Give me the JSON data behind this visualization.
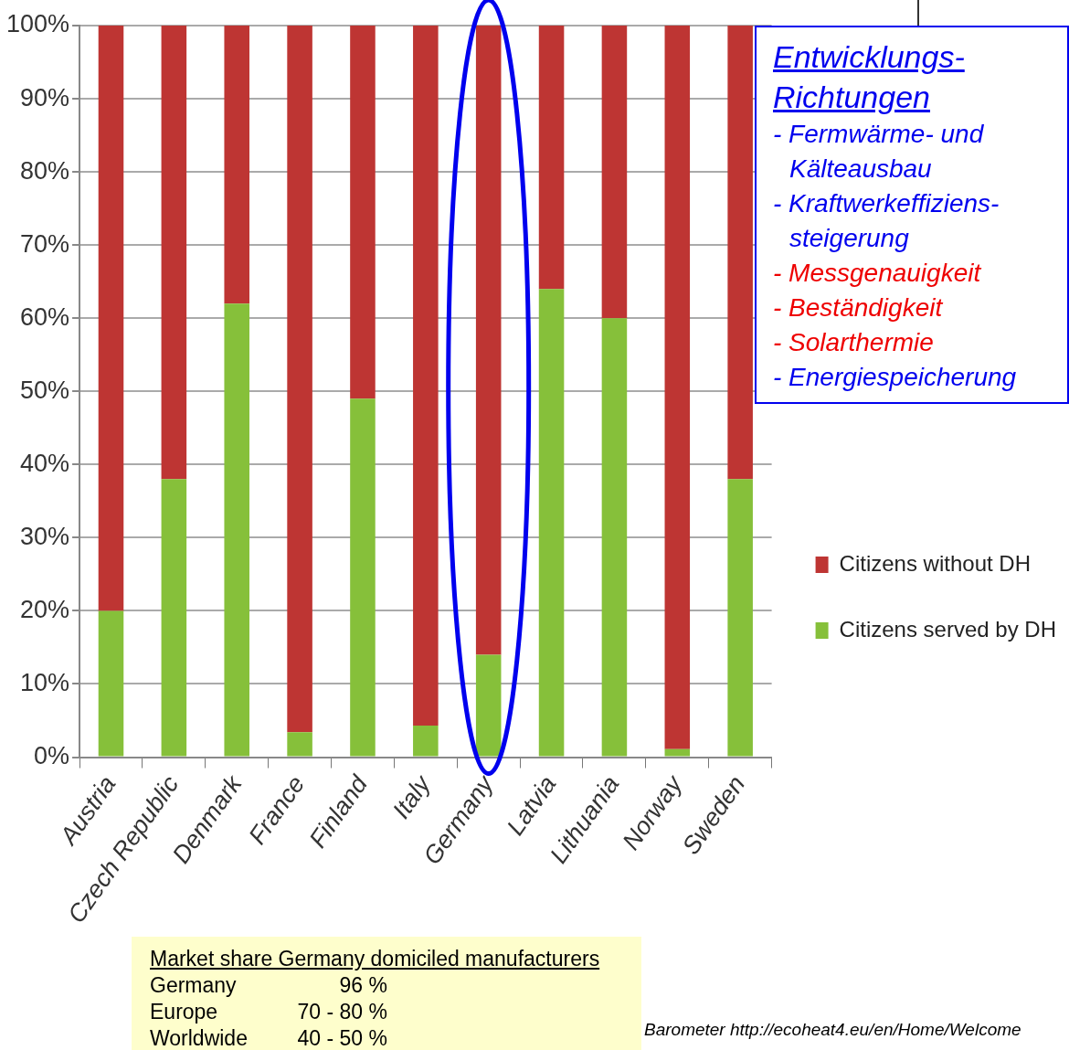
{
  "chart_data": {
    "type": "bar",
    "stacked": true,
    "categories": [
      "Austria",
      "Czech Republic",
      "Denmark",
      "France",
      "Finland",
      "Italy",
      "Germany",
      "Latvia",
      "Lithuania",
      "Norway",
      "Sweden"
    ],
    "series": [
      {
        "name": "Citizens served by DH",
        "color": "#86c03a",
        "values": [
          20,
          38,
          62,
          3.4,
          49,
          4.3,
          14,
          64,
          60,
          1.1,
          38
        ]
      },
      {
        "name": "Citizens without DH",
        "color": "#be3533",
        "values": [
          80,
          62,
          38,
          96.6,
          51,
          95.7,
          86,
          36,
          40,
          98.9,
          62
        ]
      }
    ],
    "ylim": [
      0,
      100
    ],
    "yticks": [
      {
        "value": 0,
        "label": "0%"
      },
      {
        "value": 10,
        "label": "10%"
      },
      {
        "value": 20,
        "label": "20%"
      },
      {
        "value": 30,
        "label": "30%"
      },
      {
        "value": 40,
        "label": "40%"
      },
      {
        "value": 50,
        "label": "50%"
      },
      {
        "value": 60,
        "label": "60%"
      },
      {
        "value": 70,
        "label": "70%"
      },
      {
        "value": 80,
        "label": "80%"
      },
      {
        "value": 90,
        "label": "90%"
      },
      {
        "value": 100,
        "label": "100%"
      }
    ],
    "grid": "y",
    "legend": "right",
    "annotations": [
      "Entwicklungs-Richtungen",
      "- Fermwärme- und Kälteausbau",
      "- Kraftwerkeffiziens-steigerung",
      "- Messgenauigkeit",
      "- Beständigkeit",
      "- Solarthermie",
      "- Energiespeicherung",
      "Market share Germany domiciled manufacturers",
      "Germany\t96 %",
      "Europe\t70 - 80 %",
      "Worldwide\t40 - 50 %",
      "Barometer http://ecoheat4.eu/en/Home/Welcome"
    ]
  }
}
